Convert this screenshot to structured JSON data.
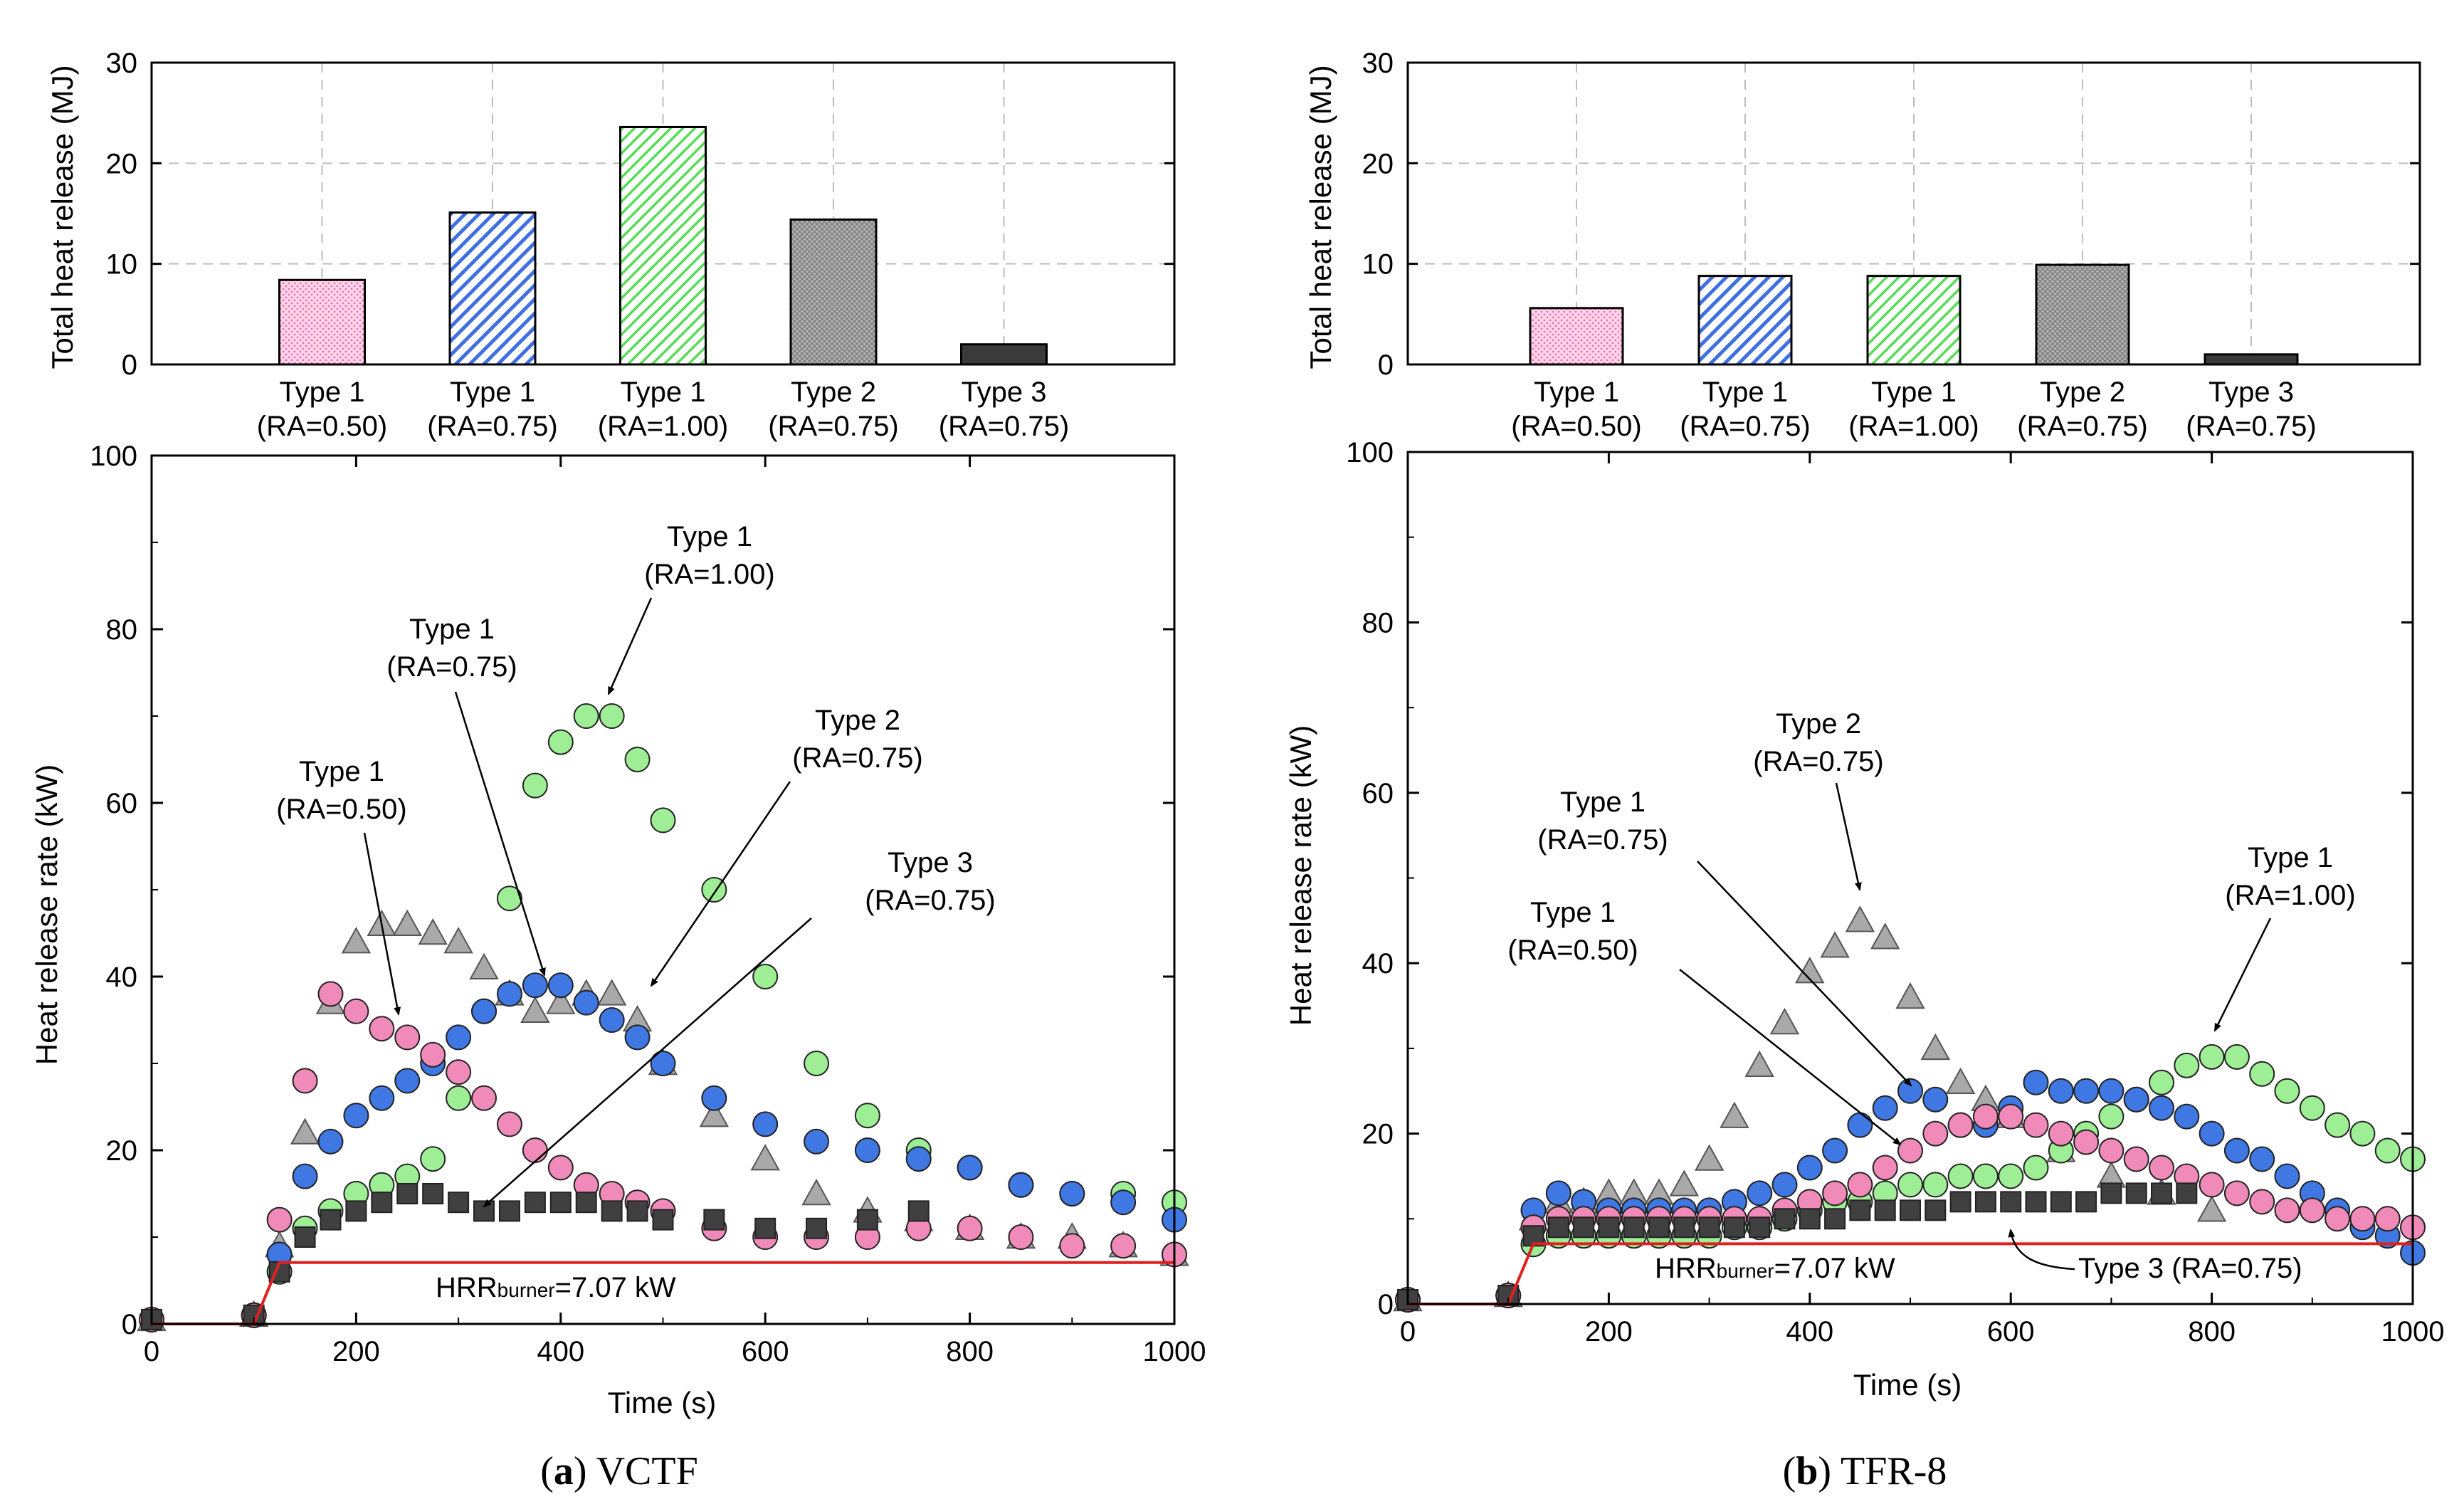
{
  "chart_data": [
    {
      "panel": "a",
      "type": "bar",
      "ylabel": "Total heat release (MJ)",
      "ylim": [
        0,
        30
      ],
      "yticks": [
        0,
        10,
        20,
        30
      ],
      "grid": true,
      "categories": [
        {
          "line1": "Type 1",
          "line2": "(RA=0.50)"
        },
        {
          "line1": "Type 1",
          "line2": "(RA=0.75)"
        },
        {
          "line1": "Type 1",
          "line2": "(RA=1.00)"
        },
        {
          "line1": "Type 2",
          "line2": "(RA=0.75)"
        },
        {
          "line1": "Type 3",
          "line2": "(RA=0.75)"
        }
      ],
      "values": [
        8.4,
        15.1,
        23.6,
        14.4,
        2.0
      ],
      "fills": [
        "pink-dots",
        "blue-hatch",
        "green-hatch",
        "gray-crosshatch",
        "dark-gray"
      ]
    },
    {
      "panel": "a",
      "type": "scatter",
      "xlabel": "Time (s)",
      "ylabel": "Heat release rate (kW)",
      "xlim": [
        0,
        1000
      ],
      "ylim": [
        0,
        100
      ],
      "xticks": [
        0,
        200,
        400,
        600,
        800,
        1000
      ],
      "yticks": [
        0,
        20,
        40,
        60,
        80,
        100
      ],
      "burner_label": {
        "main": "HRR",
        "sub": "burner",
        "rest": "=7.07 kW"
      },
      "burner": {
        "x": [
          0,
          100,
          125,
          1000
        ],
        "y": [
          0,
          0,
          7.07,
          7.07
        ]
      },
      "series": [
        {
          "marker": "triangle",
          "color": "#a9a9a9",
          "x": [
            0,
            100,
            125,
            150,
            175,
            200,
            225,
            250,
            275,
            300,
            325,
            350,
            375,
            400,
            425,
            450,
            475,
            500,
            550,
            600,
            650,
            700,
            750,
            800,
            850,
            900,
            950,
            1000
          ],
          "y": [
            0.5,
            1,
            9,
            22,
            37,
            44,
            46,
            46,
            45,
            44,
            41,
            38,
            36,
            37,
            38,
            38,
            35,
            30,
            24,
            19,
            15,
            13,
            12,
            11,
            10,
            10,
            9,
            8
          ]
        },
        {
          "marker": "circle",
          "color": "#9dee95",
          "x": [
            0,
            100,
            125,
            150,
            175,
            200,
            225,
            250,
            275,
            300,
            325,
            350,
            375,
            400,
            425,
            450,
            475,
            500,
            550,
            600,
            650,
            700,
            750,
            800,
            850,
            900,
            950,
            1000
          ],
          "y": [
            0.5,
            1,
            6,
            11,
            13,
            15,
            16,
            17,
            19,
            26,
            36,
            49,
            62,
            67,
            70,
            70,
            65,
            58,
            50,
            40,
            30,
            24,
            20,
            18,
            16,
            15,
            15,
            14
          ]
        },
        {
          "marker": "circle",
          "color": "#3f77e3",
          "x": [
            0,
            100,
            125,
            150,
            175,
            200,
            225,
            250,
            275,
            300,
            325,
            350,
            375,
            400,
            425,
            450,
            475,
            500,
            550,
            600,
            650,
            700,
            750,
            800,
            850,
            900,
            950,
            1000
          ],
          "y": [
            0.5,
            1,
            8,
            17,
            21,
            24,
            26,
            28,
            30,
            33,
            36,
            38,
            39,
            39,
            37,
            35,
            33,
            30,
            26,
            23,
            21,
            20,
            19,
            18,
            16,
            15,
            14,
            12
          ]
        },
        {
          "marker": "circle",
          "color": "#f08ab8",
          "x": [
            0,
            100,
            125,
            150,
            175,
            200,
            225,
            250,
            275,
            300,
            325,
            350,
            375,
            400,
            425,
            450,
            475,
            500,
            550,
            600,
            650,
            700,
            750,
            800,
            850,
            900,
            950,
            1000
          ],
          "y": [
            0.5,
            1,
            12,
            28,
            38,
            36,
            34,
            33,
            31,
            29,
            26,
            23,
            20,
            18,
            16,
            15,
            14,
            13,
            11,
            10,
            10,
            10,
            11,
            11,
            10,
            9,
            9,
            8
          ]
        },
        {
          "marker": "square",
          "color": "#404040",
          "x": [
            0,
            100,
            125,
            150,
            175,
            200,
            225,
            250,
            275,
            300,
            325,
            350,
            375,
            400,
            425,
            450,
            475,
            500,
            550,
            600,
            650,
            700,
            750
          ],
          "y": [
            0.5,
            1,
            6,
            10,
            12,
            13,
            14,
            15,
            15,
            14,
            13,
            13,
            14,
            14,
            14,
            13,
            13,
            12,
            12,
            11,
            11,
            12,
            13
          ]
        }
      ],
      "annotations": [
        {
          "line1": "Type 1",
          "line2": "(RA=0.50)"
        },
        {
          "line1": "Type 1",
          "line2": "(RA=0.75)"
        },
        {
          "line1": "Type 1",
          "line2": "(RA=1.00)"
        },
        {
          "line1": "Type 2",
          "line2": "(RA=0.75)"
        },
        {
          "line1": "Type 3",
          "line2": "(RA=0.75)"
        }
      ],
      "caption": {
        "letter": "a",
        "text": "VCTF"
      }
    },
    {
      "panel": "b",
      "type": "bar",
      "ylabel": "Total heat release (MJ)",
      "ylim": [
        0,
        30
      ],
      "yticks": [
        0,
        10,
        20,
        30
      ],
      "grid": true,
      "categories": [
        {
          "line1": "Type 1",
          "line2": "(RA=0.50)"
        },
        {
          "line1": "Type 1",
          "line2": "(RA=0.75)"
        },
        {
          "line1": "Type 1",
          "line2": "(RA=1.00)"
        },
        {
          "line1": "Type 2",
          "line2": "(RA=0.75)"
        },
        {
          "line1": "Type 3",
          "line2": "(RA=0.75)"
        }
      ],
      "values": [
        5.6,
        8.8,
        8.8,
        9.9,
        1.0
      ],
      "fills": [
        "pink-dots",
        "blue-hatch",
        "green-hatch",
        "gray-crosshatch",
        "dark-gray"
      ]
    },
    {
      "panel": "b",
      "type": "scatter",
      "xlabel": "Time (s)",
      "ylabel": "Heat release rate (kW)",
      "xlim": [
        0,
        1000
      ],
      "ylim": [
        0,
        100
      ],
      "xticks": [
        0,
        200,
        400,
        600,
        800,
        1000
      ],
      "yticks": [
        0,
        20,
        40,
        60,
        80,
        100
      ],
      "burner_label": {
        "main": "HRR",
        "sub": "burner",
        "rest": "=7.07 kW"
      },
      "burner": {
        "x": [
          0,
          100,
          125,
          1000
        ],
        "y": [
          0,
          0,
          7.07,
          7.07
        ]
      },
      "series": [
        {
          "marker": "triangle",
          "color": "#a9a9a9",
          "x": [
            0,
            100,
            125,
            150,
            175,
            200,
            225,
            250,
            275,
            300,
            325,
            350,
            375,
            400,
            425,
            450,
            475,
            500,
            525,
            550,
            575,
            600,
            650,
            700,
            750,
            800
          ],
          "y": [
            0.5,
            1,
            10,
            12,
            12,
            13,
            13,
            13,
            14,
            17,
            22,
            28,
            33,
            39,
            42,
            45,
            43,
            36,
            30,
            26,
            24,
            22,
            18,
            15,
            13,
            11
          ]
        },
        {
          "marker": "circle",
          "color": "#9dee95",
          "x": [
            0,
            100,
            125,
            150,
            175,
            200,
            225,
            250,
            275,
            300,
            325,
            350,
            375,
            400,
            425,
            450,
            475,
            500,
            525,
            550,
            575,
            600,
            625,
            650,
            675,
            700,
            725,
            750,
            775,
            800,
            825,
            850,
            875,
            900,
            925,
            950,
            975,
            1000
          ],
          "y": [
            0.5,
            1,
            7,
            8,
            8,
            8,
            8,
            8,
            8,
            8,
            9,
            9,
            10,
            11,
            12,
            12,
            13,
            14,
            14,
            15,
            15,
            15,
            16,
            18,
            20,
            22,
            24,
            26,
            28,
            29,
            29,
            27,
            25,
            23,
            21,
            20,
            18,
            17
          ]
        },
        {
          "marker": "circle",
          "color": "#3f77e3",
          "x": [
            0,
            100,
            125,
            150,
            175,
            200,
            225,
            250,
            275,
            300,
            325,
            350,
            375,
            400,
            425,
            450,
            475,
            500,
            525,
            550,
            575,
            600,
            625,
            650,
            675,
            700,
            725,
            750,
            775,
            800,
            825,
            850,
            875,
            900,
            925,
            950,
            975,
            1000
          ],
          "y": [
            0.5,
            1,
            11,
            13,
            12,
            11,
            11,
            11,
            11,
            11,
            12,
            13,
            14,
            16,
            18,
            21,
            23,
            25,
            24,
            21,
            21,
            23,
            26,
            25,
            25,
            25,
            24,
            23,
            22,
            20,
            18,
            17,
            15,
            13,
            11,
            9,
            8,
            6
          ]
        },
        {
          "marker": "circle",
          "color": "#f08ab8",
          "x": [
            0,
            100,
            125,
            150,
            175,
            200,
            225,
            250,
            275,
            300,
            325,
            350,
            375,
            400,
            425,
            450,
            475,
            500,
            525,
            550,
            575,
            600,
            625,
            650,
            675,
            700,
            725,
            750,
            775,
            800,
            825,
            850,
            875,
            900,
            925,
            950,
            975,
            1000
          ],
          "y": [
            0.5,
            1,
            9,
            10,
            10,
            10,
            10,
            10,
            10,
            10,
            10,
            10,
            11,
            12,
            13,
            14,
            16,
            18,
            20,
            21,
            22,
            22,
            21,
            20,
            19,
            18,
            17,
            16,
            15,
            14,
            13,
            12,
            11,
            11,
            10,
            10,
            10,
            9
          ]
        },
        {
          "marker": "square",
          "color": "#404040",
          "x": [
            0,
            100,
            125,
            150,
            175,
            200,
            225,
            250,
            275,
            300,
            325,
            350,
            375,
            400,
            425,
            450,
            475,
            500,
            525,
            550,
            575,
            600,
            625,
            650,
            675,
            700,
            725,
            750,
            775
          ],
          "y": [
            0.5,
            1,
            8,
            9,
            9,
            9,
            9,
            9,
            9,
            9,
            9,
            9,
            10,
            10,
            10,
            11,
            11,
            11,
            11,
            12,
            12,
            12,
            12,
            12,
            12,
            13,
            13,
            13,
            13
          ]
        }
      ],
      "annotations": [
        {
          "line1": "Type 1",
          "line2": "(RA=0.75)"
        },
        {
          "line1": "Type 2",
          "line2": "(RA=0.75)"
        },
        {
          "line1": "Type 1",
          "line2": "(RA=0.50)"
        },
        {
          "line1": "Type 1",
          "line2": "(RA=1.00)"
        },
        {
          "line1": "Type 3 (RA=0.75)",
          "line2": ""
        }
      ],
      "caption": {
        "letter": "b",
        "text": "TFR-8"
      }
    }
  ]
}
